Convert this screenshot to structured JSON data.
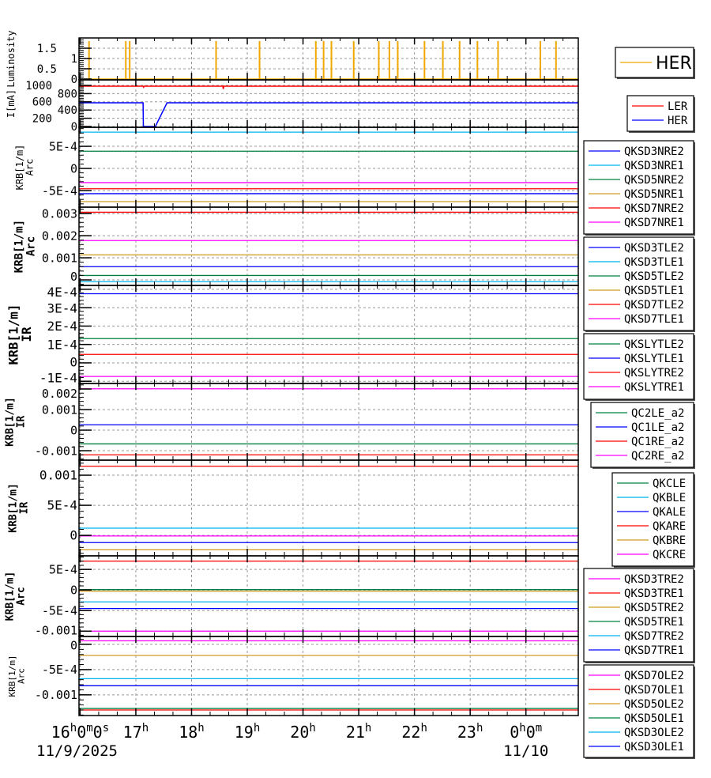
{
  "colors": {
    "blue": "#0000ff",
    "cyan": "#00b4ee",
    "green": "#008040",
    "goldenrod": "#d09a20",
    "red": "#ff0000",
    "magenta": "#ff00ff",
    "orange": "#f0a800",
    "grid": "#999999"
  },
  "chart_data": {
    "type": "line",
    "x_axis": {
      "unit": "hours since 11/9/2025 00:00",
      "xlim": [
        15.98,
        24.94
      ],
      "major_ticks": [
        16,
        17,
        18,
        19,
        20,
        21,
        22,
        23,
        24
      ],
      "tick_labels": [
        "16h0m0s",
        "17h",
        "18h",
        "19h",
        "20h",
        "21h",
        "22h",
        "23h",
        "0h0m"
      ],
      "date_labels": [
        {
          "at": 16,
          "text": "11/9/2025"
        },
        {
          "at": 24,
          "text": "11/10"
        }
      ],
      "minor_step": 0.3333,
      "grid": true
    },
    "panels": [
      {
        "ylabel": [
          "Luminosity"
        ],
        "ylim": [
          -0.04,
          2.0
        ],
        "ticks": [
          0,
          0.5,
          1,
          1.5
        ],
        "tick_labels": [
          "0",
          "0.5",
          "1",
          "1.5"
        ],
        "legend": {
          "position": "right",
          "style": "big",
          "entries": [
            {
              "name": "HER",
              "color": "orange"
            }
          ]
        },
        "series": [
          {
            "name": "HER",
            "color": "orange",
            "kind": "spikes",
            "baseline": 0,
            "height": 1.85,
            "times": [
              16.16,
              16.82,
              16.89,
              18.44,
              19.22,
              20.23,
              20.37,
              20.51,
              20.91,
              21.36,
              21.55,
              21.7,
              22.18,
              22.51,
              22.81,
              23.13,
              23.5,
              24.26,
              24.54
            ]
          }
        ]
      },
      {
        "ylabel": [
          "I[mA]"
        ],
        "ylim": [
          -20,
          1135
        ],
        "ticks": [
          0,
          200,
          400,
          600,
          800,
          1000
        ],
        "tick_labels": [
          "0",
          "200",
          "400",
          "600",
          "800",
          "1000"
        ],
        "legend": {
          "position": "right",
          "entries": [
            {
              "name": "LER",
              "color": "red"
            },
            {
              "name": "HER",
              "color": "blue"
            }
          ]
        },
        "series": [
          {
            "name": "LER",
            "color": "red",
            "points": [
              [
                15.98,
                980
              ],
              [
                17.13,
                980
              ],
              [
                17.14,
                955
              ],
              [
                17.15,
                980
              ],
              [
                18.56,
                980
              ],
              [
                18.57,
                915
              ],
              [
                18.58,
                980
              ],
              [
                24.94,
                980
              ]
            ]
          },
          {
            "name": "HER",
            "color": "blue",
            "points": [
              [
                15.98,
                577
              ],
              [
                17.13,
                577
              ],
              [
                17.135,
                0
              ],
              [
                17.35,
                0
              ],
              [
                17.56,
                577
              ],
              [
                24.94,
                577
              ]
            ]
          }
        ]
      },
      {
        "ylabel": [
          "KRB[1/m]",
          "Arc"
        ],
        "ylim": [
          -0.000875,
          0.00093
        ],
        "ticks": [
          0.0005,
          0,
          -0.0005
        ],
        "tick_labels": [
          "5E-4",
          "0",
          "-5E-4"
        ],
        "legend": {
          "entries": [
            {
              "name": "QKSD3NRE2",
              "color": "blue"
            },
            {
              "name": "QKSD3NRE1",
              "color": "cyan"
            },
            {
              "name": "QKSD5NRE2",
              "color": "green"
            },
            {
              "name": "QKSD5NRE1",
              "color": "goldenrod"
            },
            {
              "name": "QKSD7NRE2",
              "color": "red"
            },
            {
              "name": "QKSD7NRE1",
              "color": "magenta"
            }
          ]
        },
        "series": [
          {
            "name": "QKSD3NRE2",
            "color": "blue",
            "value": -0.00057
          },
          {
            "name": "QKSD3NRE1",
            "color": "cyan",
            "value": 0.00082
          },
          {
            "name": "QKSD5NRE2",
            "color": "green",
            "value": 0.00039
          },
          {
            "name": "QKSD5NRE1",
            "color": "goldenrod",
            "value": -0.00075
          },
          {
            "name": "QKSD7NRE2",
            "color": "red",
            "value": -0.00046
          },
          {
            "name": "QKSD7NRE1",
            "color": "magenta",
            "value": -0.00032
          }
        ]
      },
      {
        "ylabel": [
          "KRB[1/m]",
          "Arc"
        ],
        "ylim": [
          -0.00025,
          0.00329
        ],
        "ticks": [
          0.003,
          0.002,
          0.001,
          0
        ],
        "tick_labels": [
          "0.003",
          "0.002",
          "0.001",
          "0"
        ],
        "legend": {
          "entries": [
            {
              "name": "QKSD3TLE2",
              "color": "blue"
            },
            {
              "name": "QKSD3TLE1",
              "color": "cyan"
            },
            {
              "name": "QKSD5TLE2",
              "color": "green"
            },
            {
              "name": "QKSD5TLE1",
              "color": "goldenrod"
            },
            {
              "name": "QKSD7TLE2",
              "color": "red"
            },
            {
              "name": "QKSD7TLE1",
              "color": "magenta"
            }
          ]
        },
        "series": [
          {
            "name": "QKSD3TLE2",
            "color": "blue",
            "value": 0.0006
          },
          {
            "name": "QKSD3TLE1",
            "color": "cyan",
            "value": -8e-05
          },
          {
            "name": "QKSD5TLE2",
            "color": "green",
            "value": 0.0002
          },
          {
            "name": "QKSD5TLE1",
            "color": "goldenrod",
            "value": 0.00113
          },
          {
            "name": "QKSD7TLE2",
            "color": "red",
            "value": 0.00306
          },
          {
            "name": "QKSD7TLE1",
            "color": "magenta",
            "value": 0.00178
          }
        ]
      },
      {
        "ylabel": [
          "KRB[1/m]",
          "IR"
        ],
        "ylim": [
          -0.000112,
          0.000421
        ],
        "ticks": [
          0.0004,
          0.0003,
          0.0002,
          0.0001,
          0,
          -0.0001
        ],
        "tick_labels": [
          "4E-4",
          "3E-4",
          "2E-4",
          "1E-4",
          "0",
          "-1E-4"
        ],
        "legend": {
          "entries": [
            {
              "name": "QKSLYTLE2",
              "color": "green"
            },
            {
              "name": "QKSLYTLE1",
              "color": "blue"
            },
            {
              "name": "QKSLYTRE2",
              "color": "red"
            },
            {
              "name": "QKSLYTRE1",
              "color": "magenta"
            }
          ]
        },
        "series": [
          {
            "name": "QKSLYTLE2",
            "color": "green",
            "value": 0.000132
          },
          {
            "name": "QKSLYTLE1",
            "color": "blue",
            "value": 0.000376
          },
          {
            "name": "QKSLYTRE2",
            "color": "red",
            "value": 4.6e-05
          },
          {
            "name": "QKSLYTRE1",
            "color": "magenta",
            "value": -7.4e-05
          }
        ]
      },
      {
        "ylabel": [
          "KRB[1/m]",
          "IR"
        ],
        "ylim": [
          -0.00146,
          0.00227
        ],
        "ticks": [
          0.002,
          0.001,
          0,
          -0.001
        ],
        "tick_labels": [
          "0.002",
          "0.001",
          "0",
          "-0.001"
        ],
        "legend": {
          "entries": [
            {
              "name": "QC2LE_a2",
              "color": "green"
            },
            {
              "name": "QC1LE_a2",
              "color": "blue"
            },
            {
              "name": "QC1RE_a2",
              "color": "red"
            },
            {
              "name": "QC2RE_a2",
              "color": "magenta"
            }
          ]
        },
        "series": [
          {
            "name": "QC2LE_a2",
            "color": "green",
            "value": -0.00067
          },
          {
            "name": "QC1LE_a2",
            "color": "blue",
            "value": 0.00026
          },
          {
            "name": "QC1RE_a2",
            "color": "red",
            "value": -0.0012
          },
          {
            "name": "QC2RE_a2",
            "color": "magenta",
            "value": 0.00201
          }
        ]
      },
      {
        "ylabel": [
          "KRB[1/m]",
          "IR"
        ],
        "ylim": [
          -0.00034,
          0.00125
        ],
        "ticks": [
          0.001,
          0.0005,
          0
        ],
        "tick_labels": [
          "0.001",
          "5E-4",
          "0"
        ],
        "legend": {
          "entries": [
            {
              "name": "QKCLE",
              "color": "green"
            },
            {
              "name": "QKBLE",
              "color": "cyan"
            },
            {
              "name": "QKALE",
              "color": "blue"
            },
            {
              "name": "QKARE",
              "color": "red"
            },
            {
              "name": "QKBRE",
              "color": "goldenrod"
            },
            {
              "name": "QKCRE",
              "color": "magenta"
            }
          ]
        },
        "series": [
          {
            "name": "QKCLE",
            "color": "green",
            "value": -0.00044
          },
          {
            "name": "QKBLE",
            "color": "cyan",
            "value": 0.00012
          },
          {
            "name": "QKALE",
            "color": "blue",
            "value": -0.00012
          },
          {
            "name": "QKARE",
            "color": "red",
            "value": 0.00115
          },
          {
            "name": "QKBRE",
            "color": "goldenrod",
            "value": -0.00024
          },
          {
            "name": "QKCRE",
            "color": "magenta",
            "value": -1e-05
          }
        ]
      },
      {
        "ylabel": [
          "KRB[1/m]",
          "Arc"
        ],
        "ylim": [
          -0.00113,
          0.00083
        ],
        "ticks": [
          0.0005,
          0,
          -0.0005,
          -0.001
        ],
        "tick_labels": [
          "5E-4",
          "0",
          "-5E-4",
          "-0.001"
        ],
        "legend": {
          "entries": [
            {
              "name": "QKSD3TRE2",
              "color": "magenta"
            },
            {
              "name": "QKSD3TRE1",
              "color": "red"
            },
            {
              "name": "QKSD5TRE2",
              "color": "goldenrod"
            },
            {
              "name": "QKSD5TRE1",
              "color": "green"
            },
            {
              "name": "QKSD7TRE2",
              "color": "cyan"
            },
            {
              "name": "QKSD7TRE1",
              "color": "blue"
            }
          ]
        },
        "series": [
          {
            "name": "QKSD3TRE2",
            "color": "magenta",
            "value": -0.001
          },
          {
            "name": "QKSD3TRE1",
            "color": "red",
            "value": 0.0007
          },
          {
            "name": "QKSD5TRE2",
            "color": "goldenrod",
            "value": -3e-05
          },
          {
            "name": "QKSD5TRE1",
            "color": "green",
            "value": 1e-05
          },
          {
            "name": "QKSD7TRE2",
            "color": "cyan",
            "value": -0.00029
          },
          {
            "name": "QKSD7TRE1",
            "color": "blue",
            "value": -0.00045
          }
        ]
      },
      {
        "ylabel": [
          "KRB[1/m]",
          "Arc"
        ],
        "ylim": [
          -0.00141,
          0.000156
        ],
        "ticks": [
          0,
          -0.0005,
          -0.001
        ],
        "tick_labels": [
          "0",
          "-5E-4",
          "-0.001"
        ],
        "legend": {
          "entries": [
            {
              "name": "QKSD7OLE2",
              "color": "magenta"
            },
            {
              "name": "QKSD7OLE1",
              "color": "red"
            },
            {
              "name": "QKSD5OLE2",
              "color": "goldenrod"
            },
            {
              "name": "QKSD5OLE1",
              "color": "green"
            },
            {
              "name": "QKSD3OLE2",
              "color": "cyan"
            },
            {
              "name": "QKSD3OLE1",
              "color": "blue"
            }
          ]
        },
        "series": [
          {
            "name": "QKSD7OLE2",
            "color": "magenta",
            "value": 7e-05
          },
          {
            "name": "QKSD7OLE1",
            "color": "red",
            "value": -0.0013
          },
          {
            "name": "QKSD5OLE2",
            "color": "goldenrod",
            "value": -0.00022
          },
          {
            "name": "QKSD5OLE1",
            "color": "green",
            "value": -0.00127
          },
          {
            "name": "QKSD3OLE2",
            "color": "cyan",
            "value": -0.00068
          },
          {
            "name": "QKSD3OLE1",
            "color": "blue",
            "value": -0.00082
          }
        ]
      }
    ]
  }
}
